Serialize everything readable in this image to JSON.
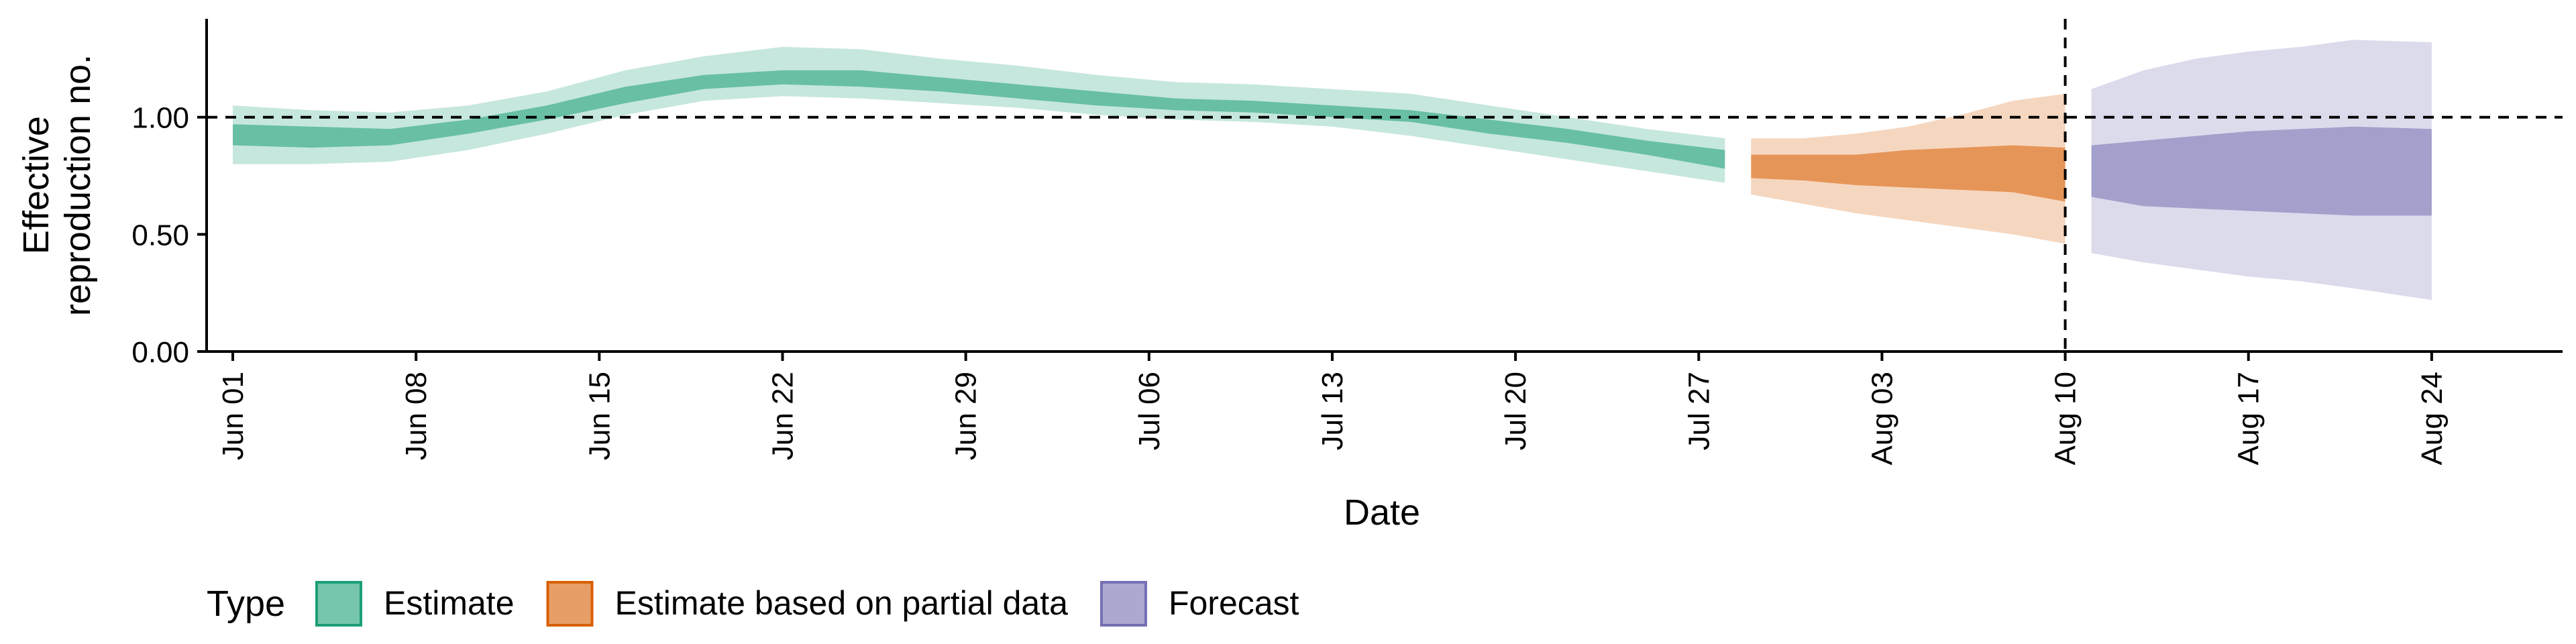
{
  "chart_data": {
    "type": "area",
    "title": "",
    "xlabel": "Date",
    "ylabel_lines": [
      "Effective",
      "reproduction no."
    ],
    "ylim": [
      0,
      1.42
    ],
    "yticks": [
      0.0,
      0.5,
      1.0
    ],
    "ytick_labels": [
      "0.00",
      "0.50",
      "1.00"
    ],
    "x_start": "2020-05-31",
    "x_end": "2020-08-29",
    "xticks": [
      "2020-06-01",
      "2020-06-08",
      "2020-06-15",
      "2020-06-22",
      "2020-06-29",
      "2020-07-06",
      "2020-07-13",
      "2020-07-20",
      "2020-07-27",
      "2020-08-03",
      "2020-08-10",
      "2020-08-17",
      "2020-08-24"
    ],
    "xtick_labels": [
      "Jun 01",
      "Jun 08",
      "Jun 15",
      "Jun 22",
      "Jun 29",
      "Jul 06",
      "Jul 13",
      "Jul 20",
      "Jul 27",
      "Aug 03",
      "Aug 10",
      "Aug 17",
      "Aug 24"
    ],
    "reference_lines": {
      "y": 1.0,
      "x": "2020-08-10"
    },
    "legend": {
      "title": "Type",
      "position": "bottom-left"
    },
    "series": [
      {
        "name": "Estimate",
        "color": "#1b9e77",
        "x": [
          "2020-06-01",
          "2020-06-04",
          "2020-06-07",
          "2020-06-10",
          "2020-06-13",
          "2020-06-16",
          "2020-06-19",
          "2020-06-22",
          "2020-06-25",
          "2020-06-28",
          "2020-07-01",
          "2020-07-04",
          "2020-07-07",
          "2020-07-10",
          "2020-07-13",
          "2020-07-16",
          "2020-07-19",
          "2020-07-22",
          "2020-07-25",
          "2020-07-28"
        ],
        "upper90": [
          1.05,
          1.03,
          1.02,
          1.05,
          1.11,
          1.2,
          1.26,
          1.3,
          1.29,
          1.25,
          1.22,
          1.18,
          1.15,
          1.14,
          1.12,
          1.1,
          1.05,
          1.0,
          0.95,
          0.91
        ],
        "upper50": [
          0.97,
          0.96,
          0.95,
          0.99,
          1.05,
          1.13,
          1.18,
          1.2,
          1.2,
          1.17,
          1.14,
          1.11,
          1.08,
          1.07,
          1.05,
          1.03,
          0.99,
          0.95,
          0.9,
          0.86
        ],
        "lower50": [
          0.88,
          0.87,
          0.88,
          0.93,
          0.99,
          1.06,
          1.12,
          1.14,
          1.13,
          1.11,
          1.08,
          1.05,
          1.03,
          1.02,
          1.0,
          0.98,
          0.93,
          0.89,
          0.84,
          0.78
        ],
        "lower90": [
          0.8,
          0.8,
          0.81,
          0.86,
          0.93,
          1.01,
          1.07,
          1.09,
          1.08,
          1.06,
          1.04,
          1.01,
          0.99,
          0.98,
          0.96,
          0.92,
          0.87,
          0.82,
          0.77,
          0.72
        ]
      },
      {
        "name": "Estimate based on partial data",
        "color": "#d95f02",
        "x": [
          "2020-07-29",
          "2020-07-31",
          "2020-08-02",
          "2020-08-04",
          "2020-08-06",
          "2020-08-08",
          "2020-08-10"
        ],
        "upper90": [
          0.91,
          0.91,
          0.93,
          0.96,
          1.01,
          1.07,
          1.1
        ],
        "upper50": [
          0.84,
          0.84,
          0.84,
          0.86,
          0.87,
          0.88,
          0.87
        ],
        "lower50": [
          0.74,
          0.73,
          0.71,
          0.7,
          0.69,
          0.68,
          0.64
        ],
        "lower90": [
          0.67,
          0.63,
          0.59,
          0.56,
          0.53,
          0.5,
          0.46
        ]
      },
      {
        "name": "Forecast",
        "color": "#7570b3",
        "x": [
          "2020-08-11",
          "2020-08-13",
          "2020-08-15",
          "2020-08-17",
          "2020-08-19",
          "2020-08-21",
          "2020-08-24"
        ],
        "upper90": [
          1.12,
          1.2,
          1.25,
          1.28,
          1.3,
          1.33,
          1.32
        ],
        "upper50": [
          0.88,
          0.9,
          0.92,
          0.94,
          0.95,
          0.96,
          0.95
        ],
        "lower50": [
          0.66,
          0.62,
          0.61,
          0.6,
          0.59,
          0.58,
          0.58
        ],
        "lower90": [
          0.42,
          0.38,
          0.35,
          0.32,
          0.3,
          0.27,
          0.22
        ]
      }
    ]
  }
}
